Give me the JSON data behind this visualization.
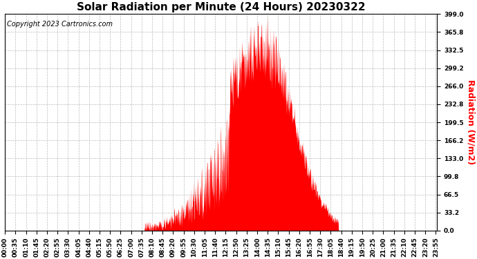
{
  "title": "Solar Radiation per Minute (24 Hours) 20230322",
  "copyright_text": "Copyright 2023 Cartronics.com",
  "ylabel": "Radiation (W/m2)",
  "ylabel_color": "#ff0000",
  "fill_color": "#ff0000",
  "background_color": "#ffffff",
  "grid_color": "#aaaaaa",
  "yticks": [
    0.0,
    33.2,
    66.5,
    99.8,
    133.0,
    166.2,
    199.5,
    232.8,
    266.0,
    299.2,
    332.5,
    365.8,
    399.0
  ],
  "ymin": 0.0,
  "ymax": 399.0,
  "title_fontsize": 11,
  "copyright_fontsize": 7,
  "ylabel_fontsize": 9,
  "tick_fontsize": 6.5,
  "dashed_zero_color": "#ff0000",
  "xtick_step": 35,
  "total_minutes": 1440
}
